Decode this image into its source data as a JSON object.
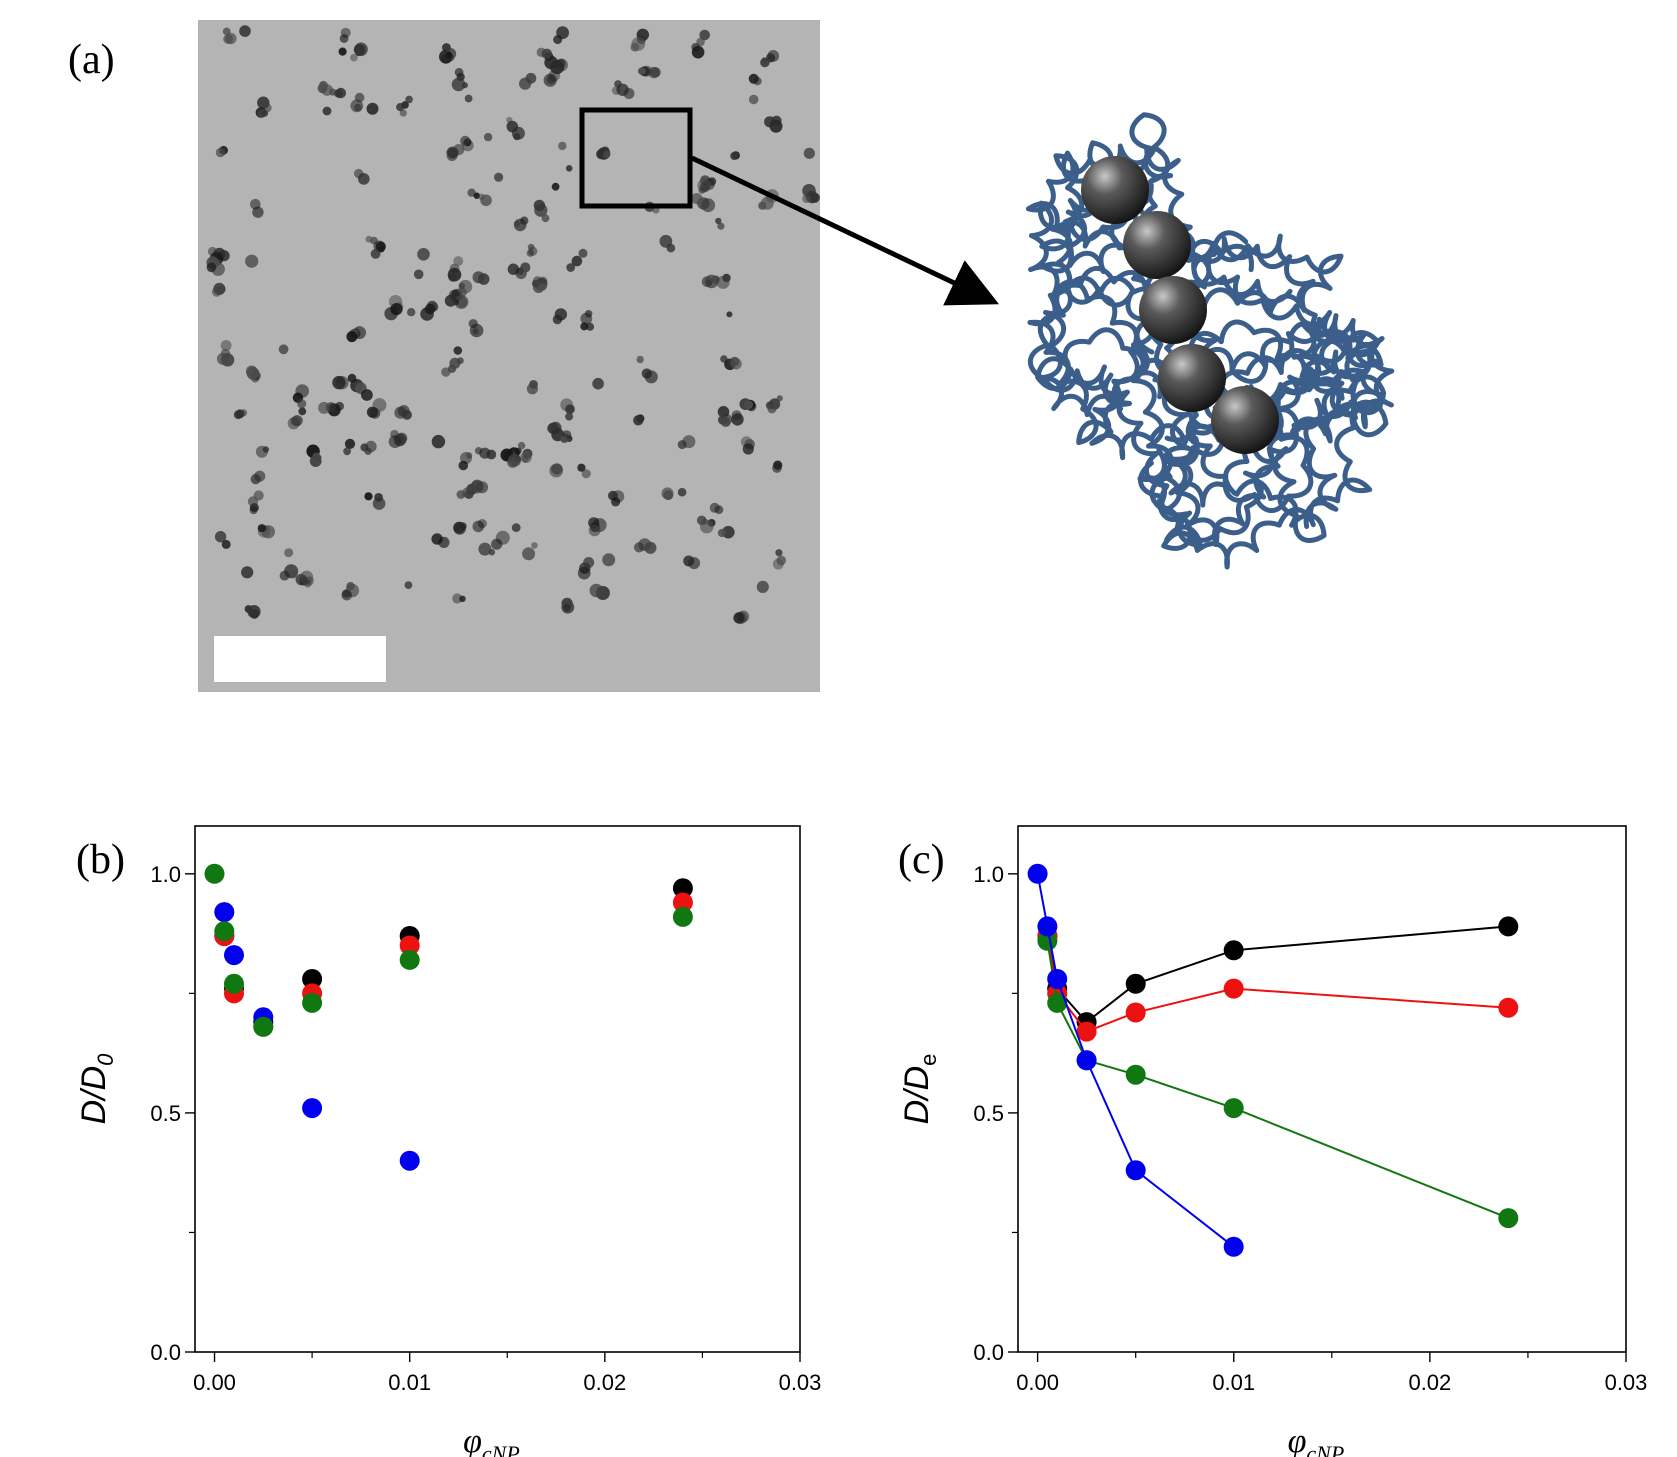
{
  "panels": {
    "a": "(a)",
    "b": "(b)",
    "c": "(c)"
  },
  "chart_data": [
    {
      "type": "scatter",
      "panel": "(b)",
      "ylabel_main": "D/D",
      "ylabel_sub": "0",
      "xlabel_main": "φ",
      "xlabel_sub": "cNP",
      "xlim": [
        -0.001,
        0.03
      ],
      "ylim": [
        0,
        1.1
      ],
      "xticks": [
        "0.00",
        "0.01",
        "0.02",
        "0.03"
      ],
      "xtick_values": [
        0,
        0.01,
        0.02,
        0.03
      ],
      "yticks": [
        "0.0",
        "0.5",
        "1.0"
      ],
      "ytick_values": [
        0,
        0.5,
        1.0
      ],
      "connected": false,
      "series": [
        {
          "color": "#000000",
          "x": [
            0.0005,
            0.001,
            0.0025,
            0.005,
            0.01,
            0.024
          ],
          "y": [
            0.87,
            0.76,
            0.69,
            0.78,
            0.87,
            0.97
          ]
        },
        {
          "color": "#ee1111",
          "x": [
            0.0005,
            0.001,
            0.0025,
            0.005,
            0.01,
            0.024
          ],
          "y": [
            0.87,
            0.75,
            0.68,
            0.75,
            0.85,
            0.94
          ]
        },
        {
          "color": "#0000ee",
          "x": [
            0.0005,
            0.001,
            0.0025,
            0.005,
            0.01
          ],
          "y": [
            0.92,
            0.83,
            0.7,
            0.51,
            0.4
          ]
        },
        {
          "color": "#117711",
          "x": [
            0,
            0.0005,
            0.001,
            0.0025,
            0.005,
            0.01,
            0.024
          ],
          "y": [
            1.0,
            0.88,
            0.77,
            0.68,
            0.73,
            0.82,
            0.91
          ]
        }
      ]
    },
    {
      "type": "line",
      "panel": "(c)",
      "ylabel_main": "D/D",
      "ylabel_sub": "e",
      "xlabel_main": "φ",
      "xlabel_sub": "cNP",
      "xlim": [
        -0.001,
        0.03
      ],
      "ylim": [
        0,
        1.1
      ],
      "xticks": [
        "0.00",
        "0.01",
        "0.02",
        "0.03"
      ],
      "xtick_values": [
        0,
        0.01,
        0.02,
        0.03
      ],
      "yticks": [
        "0.0",
        "0.5",
        "1.0"
      ],
      "ytick_values": [
        0,
        0.5,
        1.0
      ],
      "connected": true,
      "series": [
        {
          "color": "#000000",
          "x": [
            0.0005,
            0.001,
            0.0025,
            0.005,
            0.01,
            0.024
          ],
          "y": [
            0.87,
            0.76,
            0.69,
            0.77,
            0.84,
            0.89
          ]
        },
        {
          "color": "#ee1111",
          "x": [
            0.0005,
            0.001,
            0.0025,
            0.005,
            0.01,
            0.024
          ],
          "y": [
            0.87,
            0.75,
            0.67,
            0.71,
            0.76,
            0.72
          ]
        },
        {
          "color": "#117711",
          "x": [
            0.0005,
            0.001,
            0.0025,
            0.005,
            0.01,
            0.024
          ],
          "y": [
            0.86,
            0.73,
            0.61,
            0.58,
            0.51,
            0.28
          ]
        },
        {
          "color": "#0000ee",
          "x": [
            0,
            0.0005,
            0.001,
            0.0025,
            0.005,
            0.01
          ],
          "y": [
            1.0,
            0.89,
            0.78,
            0.61,
            0.38,
            0.22
          ]
        }
      ]
    }
  ],
  "schematic": {
    "coil_color": "#3b5f8a",
    "sphere_count": 5
  }
}
